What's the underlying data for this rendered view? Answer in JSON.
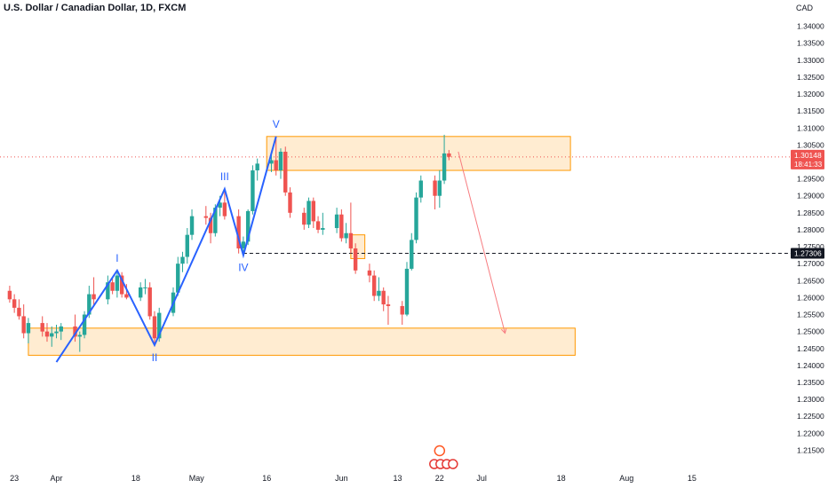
{
  "header": {
    "title": "U.S. Dollar / Canadian Dollar, 1D, FXCM",
    "currency": "CAD"
  },
  "colors": {
    "up": "#26a69a",
    "down": "#ef5350",
    "wave": "#2962ff",
    "zone_fill": "#ffe0b2",
    "zone_stroke": "#ff9800",
    "price_tag": "#ef5350",
    "level_tag": "#131722",
    "projection": "#f77c80"
  },
  "chart_data": {
    "type": "candlestick",
    "symbol": "U.S. Dollar / Canadian Dollar",
    "interval": "1D",
    "source": "FXCM",
    "ylim": [
      1.2125,
      1.3425
    ],
    "y_ticks": [
      "1.34000",
      "1.33500",
      "1.33000",
      "1.32500",
      "1.32000",
      "1.31500",
      "1.31000",
      "1.30500",
      "1.30000",
      "1.29500",
      "1.29000",
      "1.28500",
      "1.28000",
      "1.27500",
      "1.27000",
      "1.26500",
      "1.26000",
      "1.25500",
      "1.25000",
      "1.24500",
      "1.24000",
      "1.23500",
      "1.23000",
      "1.22500",
      "1.22000",
      "1.21500"
    ],
    "x_ticks": [
      {
        "label": "23",
        "day": -9
      },
      {
        "label": "Apr",
        "day": 0
      },
      {
        "label": "18",
        "day": 17
      },
      {
        "label": "May",
        "day": 30
      },
      {
        "label": "16",
        "day": 45
      },
      {
        "label": "Jun",
        "day": 61
      },
      {
        "label": "13",
        "day": 73
      },
      {
        "label": "22",
        "day": 82
      },
      {
        "label": "Jul",
        "day": 91
      },
      {
        "label": "18",
        "day": 108
      },
      {
        "label": "Aug",
        "day": 122
      },
      {
        "label": "15",
        "day": 136
      }
    ],
    "candles": [
      {
        "day": -10,
        "o": 1.262,
        "h": 1.2635,
        "l": 1.2585,
        "c": 1.2595
      },
      {
        "day": -9,
        "o": 1.2595,
        "h": 1.261,
        "l": 1.2555,
        "c": 1.257
      },
      {
        "day": -8,
        "o": 1.257,
        "h": 1.2595,
        "l": 1.2535,
        "c": 1.2545
      },
      {
        "day": -7,
        "o": 1.2545,
        "h": 1.258,
        "l": 1.248,
        "c": 1.2495
      },
      {
        "day": -6,
        "o": 1.2495,
        "h": 1.254,
        "l": 1.2465,
        "c": 1.2525
      },
      {
        "day": -3,
        "o": 1.2525,
        "h": 1.2545,
        "l": 1.2485,
        "c": 1.25
      },
      {
        "day": -2,
        "o": 1.25,
        "h": 1.2525,
        "l": 1.247,
        "c": 1.2485
      },
      {
        "day": -1,
        "o": 1.2485,
        "h": 1.2515,
        "l": 1.2455,
        "c": 1.2495
      },
      {
        "day": 0,
        "o": 1.2495,
        "h": 1.252,
        "l": 1.248,
        "c": 1.25
      },
      {
        "day": 1,
        "o": 1.25,
        "h": 1.2525,
        "l": 1.2475,
        "c": 1.2515
      },
      {
        "day": 4,
        "o": 1.2515,
        "h": 1.255,
        "l": 1.247,
        "c": 1.2485
      },
      {
        "day": 5,
        "o": 1.2485,
        "h": 1.25,
        "l": 1.244,
        "c": 1.249
      },
      {
        "day": 6,
        "o": 1.249,
        "h": 1.256,
        "l": 1.248,
        "c": 1.255
      },
      {
        "day": 7,
        "o": 1.255,
        "h": 1.2635,
        "l": 1.254,
        "c": 1.261
      },
      {
        "day": 8,
        "o": 1.261,
        "h": 1.266,
        "l": 1.2575,
        "c": 1.2595
      },
      {
        "day": 11,
        "o": 1.2595,
        "h": 1.2665,
        "l": 1.258,
        "c": 1.2645
      },
      {
        "day": 12,
        "o": 1.2645,
        "h": 1.266,
        "l": 1.261,
        "c": 1.262
      },
      {
        "day": 13,
        "o": 1.262,
        "h": 1.268,
        "l": 1.26,
        "c": 1.2665
      },
      {
        "day": 14,
        "o": 1.2665,
        "h": 1.2675,
        "l": 1.26,
        "c": 1.261
      },
      {
        "day": 15,
        "o": 1.261,
        "h": 1.264,
        "l": 1.2595,
        "c": 1.26
      },
      {
        "day": 18,
        "o": 1.26,
        "h": 1.2645,
        "l": 1.259,
        "c": 1.263
      },
      {
        "day": 19,
        "o": 1.263,
        "h": 1.2655,
        "l": 1.261,
        "c": 1.263
      },
      {
        "day": 20,
        "o": 1.263,
        "h": 1.2645,
        "l": 1.2535,
        "c": 1.2545
      },
      {
        "day": 21,
        "o": 1.2545,
        "h": 1.256,
        "l": 1.246,
        "c": 1.248
      },
      {
        "day": 22,
        "o": 1.248,
        "h": 1.257,
        "l": 1.247,
        "c": 1.2555
      },
      {
        "day": 25,
        "o": 1.2555,
        "h": 1.263,
        "l": 1.2545,
        "c": 1.2615
      },
      {
        "day": 26,
        "o": 1.2615,
        "h": 1.272,
        "l": 1.2605,
        "c": 1.27
      },
      {
        "day": 27,
        "o": 1.27,
        "h": 1.2735,
        "l": 1.2675,
        "c": 1.272
      },
      {
        "day": 28,
        "o": 1.272,
        "h": 1.2805,
        "l": 1.27,
        "c": 1.2785
      },
      {
        "day": 29,
        "o": 1.2785,
        "h": 1.286,
        "l": 1.277,
        "c": 1.284
      },
      {
        "day": 32,
        "o": 1.284,
        "h": 1.287,
        "l": 1.2815,
        "c": 1.2835
      },
      {
        "day": 33,
        "o": 1.2835,
        "h": 1.285,
        "l": 1.276,
        "c": 1.279
      },
      {
        "day": 34,
        "o": 1.279,
        "h": 1.2875,
        "l": 1.278,
        "c": 1.2865
      },
      {
        "day": 35,
        "o": 1.2865,
        "h": 1.29,
        "l": 1.284,
        "c": 1.288
      },
      {
        "day": 36,
        "o": 1.288,
        "h": 1.292,
        "l": 1.283,
        "c": 1.284
      },
      {
        "day": 39,
        "o": 1.284,
        "h": 1.286,
        "l": 1.273,
        "c": 1.2745
      },
      {
        "day": 40,
        "o": 1.2745,
        "h": 1.278,
        "l": 1.2725,
        "c": 1.2765
      },
      {
        "day": 41,
        "o": 1.2765,
        "h": 1.286,
        "l": 1.2755,
        "c": 1.2855
      },
      {
        "day": 42,
        "o": 1.2855,
        "h": 1.299,
        "l": 1.2845,
        "c": 1.2975
      },
      {
        "day": 43,
        "o": 1.2975,
        "h": 1.301,
        "l": 1.2945,
        "c": 1.2995
      },
      {
        "day": 46,
        "o": 1.2995,
        "h": 1.3025,
        "l": 1.297,
        "c": 1.3005
      },
      {
        "day": 47,
        "o": 1.3005,
        "h": 1.3075,
        "l": 1.296,
        "c": 1.2975
      },
      {
        "day": 48,
        "o": 1.2975,
        "h": 1.304,
        "l": 1.295,
        "c": 1.303
      },
      {
        "day": 49,
        "o": 1.303,
        "h": 1.3045,
        "l": 1.29,
        "c": 1.291
      },
      {
        "day": 50,
        "o": 1.291,
        "h": 1.2925,
        "l": 1.2835,
        "c": 1.285
      },
      {
        "day": 53,
        "o": 1.285,
        "h": 1.2865,
        "l": 1.28,
        "c": 1.2815
      },
      {
        "day": 54,
        "o": 1.2815,
        "h": 1.2895,
        "l": 1.2805,
        "c": 1.2885
      },
      {
        "day": 55,
        "o": 1.2885,
        "h": 1.2895,
        "l": 1.2805,
        "c": 1.2825
      },
      {
        "day": 56,
        "o": 1.2825,
        "h": 1.284,
        "l": 1.279,
        "c": 1.28
      },
      {
        "day": 57,
        "o": 1.28,
        "h": 1.285,
        "l": 1.2785,
        "c": 1.2805
      },
      {
        "day": 60,
        "o": 1.2805,
        "h": 1.2865,
        "l": 1.279,
        "c": 1.2845
      },
      {
        "day": 61,
        "o": 1.2845,
        "h": 1.286,
        "l": 1.2765,
        "c": 1.2775
      },
      {
        "day": 62,
        "o": 1.2775,
        "h": 1.282,
        "l": 1.276,
        "c": 1.279
      },
      {
        "day": 63,
        "o": 1.279,
        "h": 1.288,
        "l": 1.273,
        "c": 1.2745
      },
      {
        "day": 64,
        "o": 1.2745,
        "h": 1.276,
        "l": 1.267,
        "c": 1.268
      },
      {
        "day": 67,
        "o": 1.268,
        "h": 1.27,
        "l": 1.2645,
        "c": 1.2665
      },
      {
        "day": 68,
        "o": 1.2665,
        "h": 1.268,
        "l": 1.259,
        "c": 1.2605
      },
      {
        "day": 69,
        "o": 1.2605,
        "h": 1.266,
        "l": 1.259,
        "c": 1.262
      },
      {
        "day": 70,
        "o": 1.262,
        "h": 1.263,
        "l": 1.256,
        "c": 1.258
      },
      {
        "day": 71,
        "o": 1.258,
        "h": 1.2605,
        "l": 1.252,
        "c": 1.2575
      },
      {
        "day": 74,
        "o": 1.2575,
        "h": 1.259,
        "l": 1.252,
        "c": 1.255
      },
      {
        "day": 75,
        "o": 1.255,
        "h": 1.2705,
        "l": 1.2545,
        "c": 1.2685
      },
      {
        "day": 76,
        "o": 1.2685,
        "h": 1.279,
        "l": 1.268,
        "c": 1.277
      },
      {
        "day": 77,
        "o": 1.277,
        "h": 1.291,
        "l": 1.276,
        "c": 1.2895
      },
      {
        "day": 78,
        "o": 1.2895,
        "h": 1.296,
        "l": 1.288,
        "c": 1.2945
      },
      {
        "day": 81,
        "o": 1.2945,
        "h": 1.296,
        "l": 1.286,
        "c": 1.29
      },
      {
        "day": 82,
        "o": 1.29,
        "h": 1.2975,
        "l": 1.2865,
        "c": 1.2945
      },
      {
        "day": 83,
        "o": 1.2945,
        "h": 1.308,
        "l": 1.2935,
        "c": 1.3025
      },
      {
        "day": 84,
        "o": 1.3025,
        "h": 1.3035,
        "l": 1.3005,
        "c": 1.3015
      }
    ],
    "current_price": {
      "value": 1.30148,
      "label": "1.30148",
      "countdown": "18:41:33"
    },
    "level_line": {
      "value": 1.27306,
      "label": "1.27306"
    },
    "zones": [
      {
        "name": "upper-resistance-zone",
        "day_start": 45,
        "day_end": 110,
        "y_top": 1.3075,
        "y_bottom": 1.2975
      },
      {
        "name": "small-zone",
        "day_start": 63,
        "day_end": 66,
        "y_top": 1.2785,
        "y_bottom": 1.2715
      },
      {
        "name": "lower-target-zone",
        "day_start": -6,
        "day_end": 111,
        "y_top": 1.251,
        "y_bottom": 1.243
      }
    ],
    "wave_points": [
      {
        "label": "",
        "day": 0,
        "price": 1.241
      },
      {
        "label": "I",
        "day": 13,
        "price": 1.268
      },
      {
        "label": "II",
        "day": 21,
        "price": 1.246
      },
      {
        "label": "III",
        "day": 36,
        "price": 1.292
      },
      {
        "label": "IV",
        "day": 40,
        "price": 1.2725
      },
      {
        "label": "V",
        "day": 47,
        "price": 1.3075
      }
    ],
    "projection_arrow": {
      "from_day": 86,
      "from_price": 1.303,
      "to_day": 96,
      "to_price": 1.2495
    }
  }
}
